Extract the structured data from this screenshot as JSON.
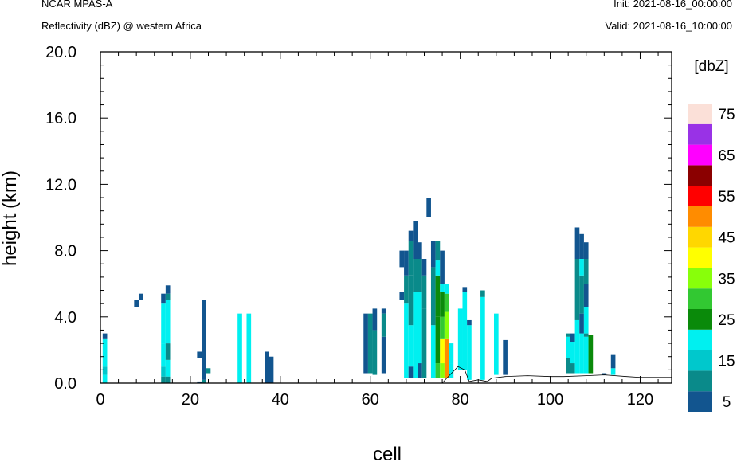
{
  "header": {
    "model": "NCAR MPAS-A",
    "subtitle": "Reflectivity (dBZ) @ western Africa",
    "init": "Init: 2021-08-16_00:00:00",
    "valid": "Valid: 2021-08-16_10:00:00"
  },
  "chart_data": {
    "type": "heatmap",
    "xlabel": "cell",
    "ylabel": "height (km)",
    "xlim": [
      0,
      127
    ],
    "ylim": [
      0,
      20
    ],
    "x_ticks": [
      0,
      20,
      40,
      60,
      80,
      100,
      120
    ],
    "y_ticks": [
      "0.0",
      "4.0",
      "8.0",
      "12.0",
      "16.0",
      "20.0"
    ],
    "colorbar": {
      "title": "[dbZ]",
      "labels": [
        "5",
        "15",
        "25",
        "35",
        "45",
        "55",
        "65",
        "75"
      ],
      "bounds": [
        0,
        5,
        10,
        15,
        20,
        25,
        30,
        35,
        40,
        45,
        50,
        55,
        60,
        65,
        70,
        75,
        80
      ],
      "colors": [
        "#12558f",
        "#0a8a8a",
        "#00c8cc",
        "#00f0f0",
        "#0a8a0a",
        "#32c832",
        "#88ff0a",
        "#ffff00",
        "#ffd700",
        "#ff8c00",
        "#ff0000",
        "#8b0000",
        "#ff00ff",
        "#9932e6",
        "#fbe0d8"
      ]
    },
    "terrain": [
      [
        0,
        0
      ],
      [
        76,
        0
      ],
      [
        77,
        0.3
      ],
      [
        79.5,
        1.0
      ],
      [
        81,
        0.8
      ],
      [
        82,
        0.1
      ],
      [
        84,
        0.2
      ],
      [
        86,
        0.1
      ],
      [
        87,
        0.3
      ],
      [
        90,
        0.4
      ],
      [
        95,
        0.45
      ],
      [
        100,
        0.4
      ],
      [
        103,
        0.4
      ],
      [
        108,
        0.45
      ],
      [
        112,
        0.5
      ],
      [
        117,
        0.4
      ],
      [
        120,
        0.35
      ],
      [
        127,
        0.35
      ]
    ],
    "columns": [
      {
        "x": 1,
        "bins": [
          [
            0,
            0.5,
            15
          ],
          [
            0.5,
            1.0,
            12
          ],
          [
            1.0,
            2.7,
            17
          ],
          [
            2.7,
            3.0,
            3
          ]
        ]
      },
      {
        "x": 8,
        "bins": [
          [
            4.6,
            5.0,
            3
          ]
        ]
      },
      {
        "x": 9,
        "bins": [
          [
            5.0,
            5.4,
            3
          ]
        ]
      },
      {
        "x": 14,
        "bins": [
          [
            0,
            0.4,
            7
          ],
          [
            0.4,
            1.0,
            12
          ],
          [
            1.0,
            2.4,
            17
          ],
          [
            2.4,
            4.8,
            15
          ],
          [
            4.8,
            5.4,
            3
          ]
        ]
      },
      {
        "x": 15,
        "bins": [
          [
            0,
            0.4,
            7
          ],
          [
            0.4,
            1.4,
            17
          ],
          [
            1.4,
            2.4,
            7
          ],
          [
            2.4,
            5.0,
            15
          ],
          [
            5.0,
            5.4,
            7
          ],
          [
            5.4,
            5.9,
            3
          ]
        ]
      },
      {
        "x": 22,
        "bins": [
          [
            0,
            0.1,
            3
          ],
          [
            1.5,
            1.9,
            3
          ]
        ]
      },
      {
        "x": 23,
        "bins": [
          [
            0,
            0.2,
            7
          ],
          [
            0.2,
            5.0,
            3
          ]
        ]
      },
      {
        "x": 24,
        "bins": [
          [
            0.6,
            0.9,
            7
          ]
        ]
      },
      {
        "x": 31,
        "bins": [
          [
            0,
            4.2,
            17
          ]
        ]
      },
      {
        "x": 33,
        "bins": [
          [
            0,
            4.2,
            17
          ]
        ]
      },
      {
        "x": 37,
        "bins": [
          [
            0,
            1.9,
            3
          ]
        ]
      },
      {
        "x": 38,
        "bins": [
          [
            0,
            1.6,
            3
          ]
        ]
      },
      {
        "x": 59,
        "bins": [
          [
            0.6,
            4.2,
            3
          ]
        ]
      },
      {
        "x": 60,
        "bins": [
          [
            0.6,
            4.2,
            7
          ]
        ]
      },
      {
        "x": 61,
        "bins": [
          [
            0.5,
            3.2,
            7
          ],
          [
            3.2,
            4.5,
            3
          ]
        ]
      },
      {
        "x": 63,
        "bins": [
          [
            0.6,
            2.8,
            3
          ],
          [
            2.8,
            4.2,
            7
          ],
          [
            4.2,
            4.5,
            3
          ]
        ]
      },
      {
        "x": 67,
        "bins": [
          [
            5.0,
            5.5,
            3
          ],
          [
            7.0,
            8.0,
            3
          ]
        ]
      },
      {
        "x": 68,
        "bins": [
          [
            0.3,
            4.8,
            17
          ],
          [
            4.8,
            6.5,
            7
          ],
          [
            6.5,
            8.0,
            3
          ]
        ]
      },
      {
        "x": 69,
        "bins": [
          [
            0.3,
            1.0,
            3
          ],
          [
            1.0,
            3.5,
            15
          ],
          [
            3.5,
            6.5,
            7
          ],
          [
            6.5,
            8.6,
            7
          ],
          [
            8.6,
            9.2,
            3
          ]
        ]
      },
      {
        "x": 70,
        "bins": [
          [
            0.3,
            2.0,
            15
          ],
          [
            2.0,
            5.5,
            17
          ],
          [
            5.5,
            7.5,
            7
          ],
          [
            7.5,
            9.8,
            3
          ]
        ]
      },
      {
        "x": 71,
        "bins": [
          [
            0.3,
            1.2,
            3
          ],
          [
            1.2,
            5.5,
            17
          ],
          [
            5.5,
            7.5,
            7
          ],
          [
            7.5,
            8.5,
            3
          ]
        ]
      },
      {
        "x": 72,
        "bins": [
          [
            0.3,
            4.5,
            7
          ],
          [
            4.5,
            6.5,
            7
          ],
          [
            6.5,
            7.5,
            3
          ]
        ]
      },
      {
        "x": 73,
        "bins": [
          [
            10.0,
            11.2,
            3
          ]
        ]
      },
      {
        "x": 74,
        "bins": [
          [
            0.3,
            3.5,
            17
          ],
          [
            3.5,
            7.0,
            7
          ],
          [
            7.0,
            8.6,
            3
          ]
        ]
      },
      {
        "x": 75,
        "bins": [
          [
            0.3,
            1.2,
            27
          ],
          [
            1.2,
            2.5,
            22
          ],
          [
            2.5,
            4.0,
            22
          ],
          [
            4.0,
            6.5,
            22
          ],
          [
            6.5,
            7.4,
            15
          ],
          [
            7.4,
            8.6,
            7
          ]
        ]
      },
      {
        "x": 76,
        "bins": [
          [
            0.3,
            1.2,
            32
          ],
          [
            1.2,
            2.7,
            37
          ],
          [
            2.7,
            4.0,
            27
          ],
          [
            4.0,
            5.5,
            22
          ],
          [
            5.5,
            6.0,
            17
          ],
          [
            6.0,
            8.0,
            3
          ]
        ]
      },
      {
        "x": 77,
        "bins": [
          [
            0.3,
            2.7,
            47
          ],
          [
            2.7,
            4.3,
            32
          ],
          [
            4.3,
            5.4,
            27
          ],
          [
            5.4,
            6.0,
            15
          ]
        ]
      },
      {
        "x": 78,
        "bins": [
          [
            0.3,
            1.2,
            17
          ],
          [
            1.2,
            2.4,
            15
          ]
        ]
      },
      {
        "x": 80,
        "bins": [
          [
            0.8,
            2.5,
            17
          ],
          [
            2.5,
            4.5,
            17
          ]
        ]
      },
      {
        "x": 81,
        "bins": [
          [
            0.8,
            2.5,
            17
          ],
          [
            2.5,
            5.5,
            15
          ],
          [
            5.5,
            5.8,
            3
          ]
        ]
      },
      {
        "x": 82,
        "bins": [
          [
            0.2,
            3.5,
            17
          ],
          [
            3.5,
            3.8,
            3
          ]
        ]
      },
      {
        "x": 85,
        "bins": [
          [
            0.2,
            5.2,
            17
          ],
          [
            5.2,
            5.6,
            7
          ]
        ]
      },
      {
        "x": 88,
        "bins": [
          [
            0.5,
            4.2,
            17
          ]
        ]
      },
      {
        "x": 90,
        "bins": [
          [
            0.5,
            2.6,
            3
          ]
        ]
      },
      {
        "x": 104,
        "bins": [
          [
            0.6,
            1.5,
            7
          ],
          [
            1.5,
            2.8,
            15
          ],
          [
            2.8,
            3.0,
            7
          ]
        ]
      },
      {
        "x": 105,
        "bins": [
          [
            0.6,
            1.2,
            7
          ],
          [
            1.2,
            2.5,
            15
          ],
          [
            2.5,
            3.0,
            3
          ]
        ]
      },
      {
        "x": 106,
        "bins": [
          [
            0.6,
            3.8,
            17
          ],
          [
            3.8,
            7.5,
            7
          ],
          [
            7.5,
            9.4,
            3
          ]
        ]
      },
      {
        "x": 107,
        "bins": [
          [
            0.6,
            3.0,
            17
          ],
          [
            3.0,
            4.2,
            3
          ],
          [
            4.2,
            6.5,
            7
          ],
          [
            6.5,
            7.5,
            15
          ],
          [
            7.5,
            9.0,
            3
          ]
        ]
      },
      {
        "x": 108,
        "bins": [
          [
            0.6,
            2.8,
            17
          ],
          [
            2.8,
            3.0,
            7
          ],
          [
            3.0,
            4.6,
            15
          ],
          [
            4.6,
            6.0,
            3
          ],
          [
            6.0,
            7.5,
            7
          ],
          [
            7.5,
            8.5,
            3
          ]
        ]
      },
      {
        "x": 109,
        "bins": [
          [
            0.6,
            2.9,
            22
          ]
        ]
      },
      {
        "x": 112,
        "bins": [
          [
            0.5,
            0.6,
            3
          ]
        ]
      },
      {
        "x": 114,
        "bins": [
          [
            0.5,
            0.9,
            15
          ],
          [
            0.9,
            1.7,
            3
          ]
        ]
      }
    ]
  }
}
